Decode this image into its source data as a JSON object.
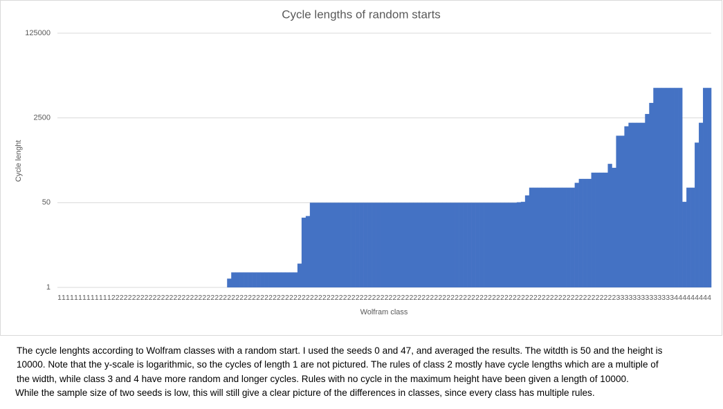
{
  "chart_data": {
    "type": "bar",
    "title": "Cycle lengths of random starts",
    "xlabel": "Wolfram class",
    "ylabel": "Cycle lenght",
    "categories": [
      "1",
      "1",
      "1",
      "1",
      "1",
      "1",
      "1",
      "1",
      "1",
      "1",
      "1",
      "1",
      "1",
      "2",
      "2",
      "2",
      "2",
      "2",
      "2",
      "2",
      "2",
      "2",
      "2",
      "2",
      "2",
      "2",
      "2",
      "2",
      "2",
      "2",
      "2",
      "2",
      "2",
      "2",
      "2",
      "2",
      "2",
      "2",
      "2",
      "2",
      "2",
      "2",
      "2",
      "2",
      "2",
      "2",
      "2",
      "2",
      "2",
      "2",
      "2",
      "2",
      "2",
      "2",
      "2",
      "2",
      "2",
      "2",
      "2",
      "2",
      "2",
      "2",
      "2",
      "2",
      "2",
      "2",
      "2",
      "2",
      "2",
      "2",
      "2",
      "2",
      "2",
      "2",
      "2",
      "2",
      "2",
      "2",
      "2",
      "2",
      "2",
      "2",
      "2",
      "2",
      "2",
      "2",
      "2",
      "2",
      "2",
      "2",
      "2",
      "2",
      "2",
      "2",
      "2",
      "2",
      "2",
      "2",
      "2",
      "2",
      "2",
      "2",
      "2",
      "2",
      "2",
      "2",
      "2",
      "2",
      "2",
      "2",
      "2",
      "2",
      "2",
      "2",
      "2",
      "2",
      "2",
      "2",
      "2",
      "2",
      "2",
      "2",
      "2",
      "2",
      "2",
      "2",
      "2",
      "2",
      "2",
      "2",
      "2",
      "2",
      "2",
      "2",
      "2",
      "3",
      "3",
      "3",
      "3",
      "3",
      "3",
      "3",
      "3",
      "3",
      "3",
      "3",
      "3",
      "3",
      "3",
      "4",
      "4",
      "4",
      "4",
      "4",
      "4",
      "4",
      "4",
      "4"
    ],
    "values": [
      1,
      1,
      1,
      1,
      1,
      1,
      1,
      1,
      1,
      1,
      1,
      1,
      1,
      1,
      1,
      1,
      1,
      1,
      1,
      1,
      1,
      1,
      1,
      1,
      1,
      1,
      1,
      1,
      1,
      1,
      1,
      1,
      1,
      1,
      1,
      1,
      1,
      1,
      1,
      1,
      1,
      1.5,
      2,
      2,
      2,
      2,
      2,
      2,
      2,
      2,
      2,
      2,
      2,
      2,
      2,
      2,
      2,
      2,
      3,
      25,
      27,
      50,
      50,
      50,
      50,
      50,
      50,
      50,
      50,
      50,
      50,
      50,
      50,
      50,
      50,
      50,
      50,
      50,
      50,
      50,
      50,
      50,
      50,
      50,
      50,
      50,
      50,
      50,
      50,
      50,
      50,
      50,
      50,
      50,
      50,
      50,
      50,
      50,
      50,
      50,
      50,
      50,
      50,
      50,
      50,
      50,
      50,
      50,
      50,
      50,
      50,
      51,
      52,
      70,
      100,
      100,
      100,
      100,
      100,
      100,
      100,
      100,
      100,
      100,
      100,
      125,
      150,
      150,
      150,
      200,
      200,
      200,
      200,
      300,
      250,
      1100,
      1100,
      1700,
      2000,
      2000,
      2000,
      2000,
      3000,
      5000,
      10000,
      10000,
      10000,
      10000,
      10000,
      10000,
      10000,
      52,
      100,
      100,
      800,
      2000,
      10000,
      10000
    ],
    "color": "#4472c4",
    "log_scale": true,
    "ylim": [
      1,
      125000
    ],
    "yticks": [
      1,
      50,
      2500,
      125000
    ],
    "grid": true
  },
  "caption": [
    "The cycle lenghts according to Wolfram classes with a random start. I used the seeds 0 and 47, and averaged the results. The witdth is 50 and the height is",
    "10000. Note that the y-scale is logarithmic, so the cycles of length 1 are not pictured. The rules of class 2 mostly have cycle lengths which are a multiple of",
    "the width, while class 3 and 4 have more random and longer cycles. Rules with no cycle in the maximum height have been given a length of 10000.",
    "While the sample size of two seeds is low, this will still give a clear picture of the differences in classes, since every class has multiple rules."
  ]
}
